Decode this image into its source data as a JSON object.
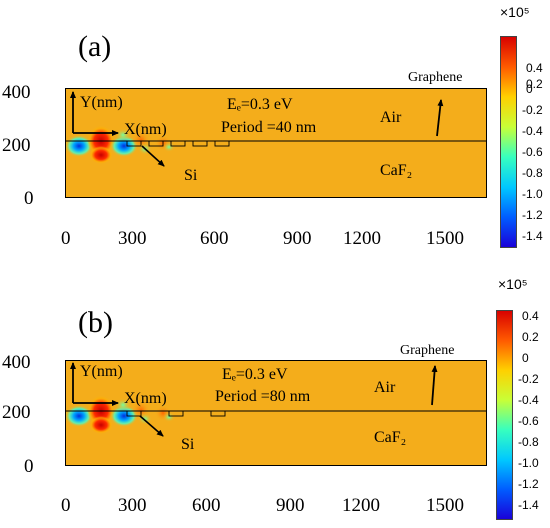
{
  "colorbar": {
    "multiplier": "×10⁵",
    "colors": [
      "#1a00d8",
      "#005cff",
      "#00c8ff",
      "#37ffbf",
      "#c8ff37",
      "#ffd000",
      "#ff5a00",
      "#d80000"
    ],
    "background_color": "#f4ad1b"
  },
  "panels": [
    {
      "label": "(a)",
      "fermi_label": "Eₑ=0.3 eV",
      "period_label": "Period =40 nm",
      "air_label": "Air",
      "caf2_label": "CaF₂",
      "si_label": "Si",
      "graphene_label": "Graphene",
      "y_axis_label": "Y(nm)",
      "x_axis_label": "X(nm)",
      "x_ticks": [
        "0",
        "300",
        "600",
        "900",
        "1200",
        "1500"
      ],
      "y_ticks": [
        "400",
        "200",
        "0"
      ],
      "colorbar_ticks": [
        "0.4",
        "0.2",
        "0",
        "-0.2",
        "-0.4",
        "-0.6",
        "-0.8",
        "-1.0",
        "-1.2",
        "-1.4"
      ],
      "period_nm": 40
    },
    {
      "label": "(b)",
      "fermi_label": "Eₑ=0.3 eV",
      "period_label": "Period =80 nm",
      "air_label": "Air",
      "caf2_label": "CaF₂",
      "si_label": "Si",
      "graphene_label": "Graphene",
      "y_axis_label": "Y(nm)",
      "x_axis_label": "X(nm)",
      "x_ticks": [
        "0",
        "300",
        "600",
        "900",
        "1200",
        "1500"
      ],
      "y_ticks": [
        "400",
        "200",
        "0"
      ],
      "colorbar_ticks": [
        "0.4",
        "0.2",
        "0",
        "-0.2",
        "-0.4",
        "-0.6",
        "-0.8",
        "-1.0",
        "-1.2",
        "-1.4"
      ],
      "period_nm": 80
    }
  ]
}
